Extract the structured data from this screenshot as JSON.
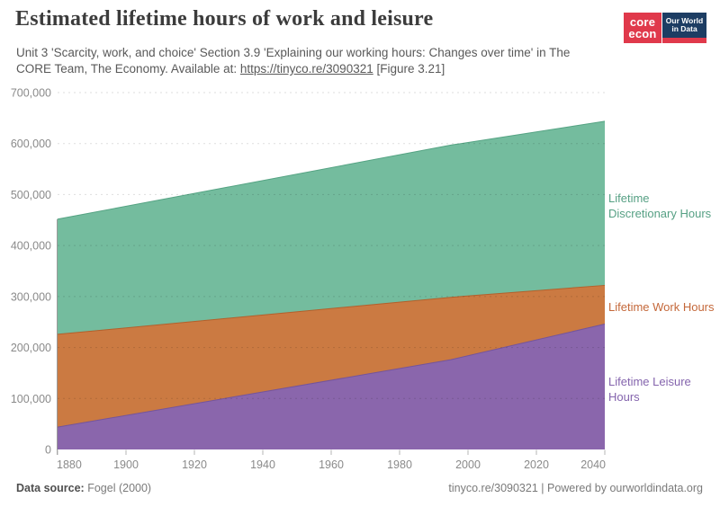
{
  "header": {
    "title": "Estimated lifetime hours of work and leisure",
    "subtitle_line1": "Unit 3 'Scarcity, work, and choice' Section 3.9 'Explaining our working hours: Changes over time' in The",
    "subtitle_line2_prefix": "CORE Team, The Economy. Available at: ",
    "subtitle_link": "https://tinyco.re/3090321",
    "subtitle_line2_suffix": " [Figure 3.21]"
  },
  "logo": {
    "core_line1": "core",
    "core_line2": "econ",
    "owid_line1": "Our World",
    "owid_line2": "in Data",
    "core_bg": "#e0394b",
    "owid_bg": "#1d3d63",
    "owid_strip": "#e0394b"
  },
  "footer": {
    "source_label": "Data source:",
    "source_value": "Fogel (2000)",
    "right_text": "tinyco.re/3090321 | Powered by ourworldindata.org"
  },
  "chart_data": {
    "type": "area",
    "stacked": true,
    "title": "Estimated lifetime hours of work and leisure",
    "xlabel": "",
    "ylabel": "",
    "x": [
      1880,
      1995,
      2040
    ],
    "series": [
      {
        "name": "Lifetime Leisure Hours",
        "values": [
          43800,
          176100,
          246000
        ],
        "fill": "#8A66AC",
        "stroke": "#74549b",
        "label_color": "#8464AD",
        "label": "Lifetime Leisure Hours"
      },
      {
        "name": "Lifetime Work Hours",
        "values": [
          182100,
          122400,
          75900
        ],
        "fill": "#CB7A42",
        "stroke": "#b2602c",
        "label_color": "#C4683A",
        "label": "Lifetime Work Hours"
      },
      {
        "name": "Lifetime Discretionary Hours",
        "values": [
          225900,
          298500,
          321900
        ],
        "fill": "#74BC9E",
        "stroke": "#55a383",
        "label_color": "#56A084",
        "label": "Lifetime Discretionary Hours"
      }
    ],
    "x_ticks": [
      1880,
      1900,
      1920,
      1940,
      1960,
      1980,
      2000,
      2020,
      2040
    ],
    "y_ticks": [
      0,
      100000,
      200000,
      300000,
      400000,
      500000,
      600000,
      700000
    ],
    "xlim": [
      1880,
      2040
    ],
    "ylim": [
      0,
      700000
    ],
    "grid": "dashed horizontal",
    "legend_position": "right",
    "colors": {
      "grid": "rgba(0,0,0,0.13)",
      "axis_line": "#9a9a9a",
      "tick": "#b5b5b5",
      "tick_label": "#8a8a8a"
    }
  }
}
